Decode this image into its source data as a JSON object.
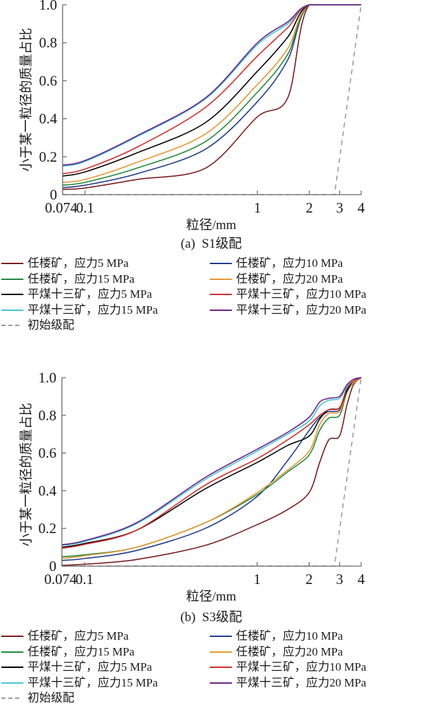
{
  "chart_data": [
    {
      "type": "line",
      "title": "(a)  S1级配",
      "xlabel": "粒径/mm",
      "ylabel": "小于某一粒径的质量占比",
      "xscale": "log",
      "xlim": [
        0.074,
        4
      ],
      "ylim": [
        0,
        1.0
      ],
      "xticks": [
        0.074,
        0.1,
        1,
        2,
        3,
        4
      ],
      "xtick_labels": [
        "0.074",
        "0.1",
        "1",
        "2",
        "3",
        "4"
      ],
      "yticks": [
        0,
        0.2,
        0.4,
        0.6,
        0.8,
        1.0
      ],
      "ytick_labels": [
        "0",
        "0.2",
        "0.4",
        "0.6",
        "0.8",
        "1.0"
      ],
      "grid": false,
      "legend_position": "below",
      "x": [
        0.074,
        0.1,
        0.2,
        0.5,
        1,
        1.5,
        2,
        4
      ],
      "series": [
        {
          "name": "任楼矿，应力5 MPa",
          "color": "#7a1c1c",
          "dashed": false,
          "values": [
            0.028,
            0.035,
            0.08,
            0.14,
            0.41,
            0.51,
            1.0,
            1.0
          ]
        },
        {
          "name": "任楼矿，应力10 MPa",
          "color": "#1f3b8c",
          "dashed": false,
          "values": [
            0.037,
            0.05,
            0.11,
            0.24,
            0.49,
            0.71,
            1.0,
            1.0
          ]
        },
        {
          "name": "任楼矿，应力15 MPa",
          "color": "#1e8a3c",
          "dashed": false,
          "values": [
            0.05,
            0.065,
            0.14,
            0.28,
            0.54,
            0.74,
            1.0,
            1.0
          ]
        },
        {
          "name": "任楼矿，应力20 MPa",
          "color": "#e8962e",
          "dashed": false,
          "values": [
            0.065,
            0.08,
            0.17,
            0.32,
            0.58,
            0.77,
            1.0,
            1.0
          ]
        },
        {
          "name": "平煤十三矿，应力5 MPa",
          "color": "#000000",
          "dashed": false,
          "values": [
            0.098,
            0.12,
            0.22,
            0.38,
            0.65,
            0.83,
            1.0,
            1.0
          ]
        },
        {
          "name": "平煤十三矿，应力10 MPa",
          "color": "#d62a2a",
          "dashed": false,
          "values": [
            0.11,
            0.135,
            0.25,
            0.46,
            0.73,
            0.88,
            1.0,
            1.0
          ]
        },
        {
          "name": "平煤十三矿，应力15 MPa",
          "color": "#3fc6d6",
          "dashed": false,
          "values": [
            0.15,
            0.175,
            0.305,
            0.505,
            0.79,
            0.9,
            1.0,
            1.0
          ]
        },
        {
          "name": "平煤十三矿，应力20 MPa",
          "color": "#6a1f8a",
          "dashed": false,
          "values": [
            0.155,
            0.18,
            0.31,
            0.51,
            0.8,
            0.91,
            1.0,
            1.0
          ]
        },
        {
          "name": "初始级配",
          "color": "#9a9a9a",
          "dashed": true,
          "x": [
            0.074,
            2.8,
            4
          ],
          "values": [
            0,
            0,
            1.0
          ]
        }
      ]
    },
    {
      "type": "line",
      "title": "(b)  S3级配",
      "xlabel": "粒径/mm",
      "ylabel": "小于某一粒径的质量占比",
      "xscale": "log",
      "xlim": [
        0.074,
        4
      ],
      "ylim": [
        0,
        1.0
      ],
      "xticks": [
        0.074,
        0.1,
        1,
        2,
        3,
        4
      ],
      "xtick_labels": [
        "0.074",
        "0.1",
        "1",
        "2",
        "3",
        "4"
      ],
      "yticks": [
        0,
        0.2,
        0.4,
        0.6,
        0.8,
        1.0
      ],
      "ytick_labels": [
        "0",
        "0.2",
        "0.4",
        "0.6",
        "0.8",
        "1.0"
      ],
      "grid": false,
      "legend_position": "below",
      "x": [
        0.074,
        0.1,
        0.2,
        0.5,
        1,
        1.5,
        2,
        2.3,
        2.6,
        3,
        3.3,
        3.6,
        4
      ],
      "series": [
        {
          "name": "任楼矿，应力5 MPa",
          "color": "#7a1c1c",
          "dashed": false,
          "values": [
            0.004,
            0.01,
            0.035,
            0.11,
            0.22,
            0.3,
            0.39,
            0.55,
            0.67,
            0.69,
            0.85,
            0.96,
            1.0
          ]
        },
        {
          "name": "任楼矿，应力10 MPa",
          "color": "#1f3b8c",
          "dashed": false,
          "values": [
            0.03,
            0.04,
            0.083,
            0.2,
            0.37,
            0.56,
            0.72,
            0.79,
            0.82,
            0.83,
            0.94,
            0.98,
            1.0
          ]
        },
        {
          "name": "任楼矿，应力15 MPa",
          "color": "#1e8a3c",
          "dashed": false,
          "values": [
            0.05,
            0.06,
            0.1,
            0.23,
            0.38,
            0.5,
            0.59,
            0.72,
            0.785,
            0.8,
            0.92,
            0.97,
            1.0
          ]
        },
        {
          "name": "任楼矿，应力20 MPa",
          "color": "#e8962e",
          "dashed": false,
          "values": [
            0.04,
            0.055,
            0.1,
            0.23,
            0.39,
            0.51,
            0.61,
            0.75,
            0.81,
            0.82,
            0.93,
            0.97,
            1.0
          ]
        },
        {
          "name": "平煤十三矿，应力5 MPa",
          "color": "#000000",
          "dashed": false,
          "values": [
            0.1,
            0.12,
            0.19,
            0.41,
            0.55,
            0.64,
            0.69,
            0.78,
            0.83,
            0.84,
            0.93,
            0.98,
            1.0
          ]
        },
        {
          "name": "平煤十三矿，应力10 MPa",
          "color": "#d62a2a",
          "dashed": false,
          "values": [
            0.095,
            0.115,
            0.19,
            0.43,
            0.57,
            0.67,
            0.75,
            0.8,
            0.83,
            0.84,
            0.94,
            0.98,
            1.0
          ]
        },
        {
          "name": "平煤十三矿，应力15 MPa",
          "color": "#3fc6d6",
          "dashed": false,
          "values": [
            0.11,
            0.13,
            0.225,
            0.46,
            0.61,
            0.7,
            0.77,
            0.85,
            0.88,
            0.89,
            0.95,
            0.99,
            1.0
          ]
        },
        {
          "name": "平煤十三矿，应力20 MPa",
          "color": "#6a1f8a",
          "dashed": false,
          "values": [
            0.113,
            0.135,
            0.23,
            0.47,
            0.62,
            0.71,
            0.79,
            0.87,
            0.89,
            0.9,
            0.96,
            0.99,
            1.0
          ]
        },
        {
          "name": "初始级配",
          "color": "#9a9a9a",
          "dashed": true,
          "x": [
            0.074,
            2.8,
            4
          ],
          "values": [
            0,
            0,
            1.0
          ]
        }
      ]
    }
  ]
}
